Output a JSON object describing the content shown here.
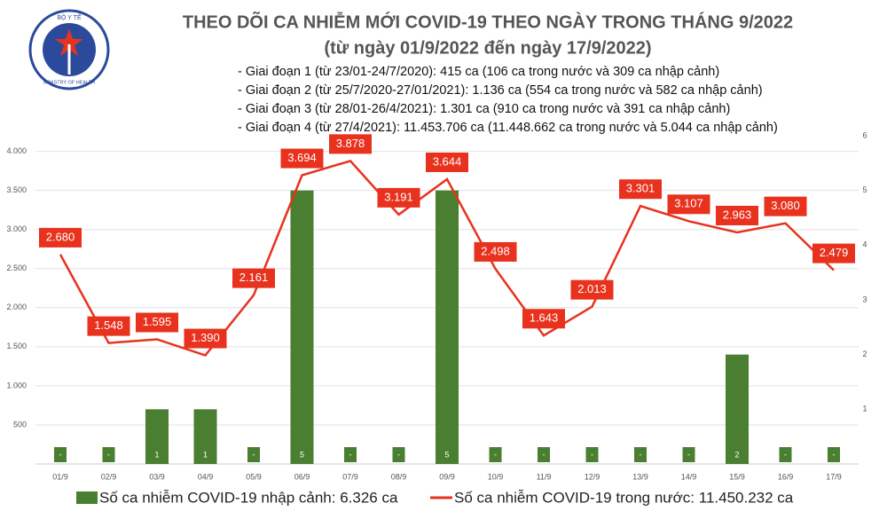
{
  "logo": {
    "top": "BỘ Y TẾ",
    "bottom": "MINISTRY OF HEALTH"
  },
  "header": {
    "title": "THEO DÕI CA NHIỄM MỚI COVID-19 THEO NGÀY TRONG THÁNG 9/2022",
    "subtitle": "(từ ngày 01/9/2022 đến ngày 17/9/2022)",
    "notes": [
      "- Giai đoạn 1 (từ 23/01-24/7/2020): 415 ca (106 ca trong nước và 309 ca nhập cảnh)",
      "- Giai đoạn 2 (từ 25/7/2020-27/01/2021): 1.136 ca (554 ca trong nước và 582 ca nhập cảnh)",
      "- Giai đoạn 3 (từ 28/01-26/4/2021): 1.301 ca (910 ca trong nước và 391 ca nhập cảnh)",
      "- Giai đoạn 4 (từ 27/4/2021): 11.453.706 ca (11.448.662 ca trong nước và 5.044 ca nhập cảnh)"
    ]
  },
  "chart_data": {
    "type": "bar-line",
    "categories": [
      "01/9",
      "02/9",
      "03/9",
      "04/9",
      "05/9",
      "06/9",
      "07/9",
      "08/9",
      "09/9",
      "10/9",
      "11/9",
      "12/9",
      "13/9",
      "14/9",
      "15/9",
      "16/9",
      "17/9"
    ],
    "series": [
      {
        "name": "Số ca nhiễm COVID-19 nhập cảnh: 6.326 ca",
        "type": "bar",
        "axis": "y2",
        "color": "#4a7f32",
        "values": [
          0,
          0,
          1,
          1,
          0,
          5,
          0,
          0,
          5,
          0,
          0,
          0,
          0,
          0,
          2,
          0,
          0
        ],
        "value_labels": [
          "-",
          "-",
          "1",
          "1",
          "-",
          "5",
          "-",
          "-",
          "5",
          "-",
          "-",
          "-",
          "-",
          "-",
          "2",
          "-",
          "-"
        ]
      },
      {
        "name": "Số ca nhiễm COVID-19 trong nước: 11.450.232 ca",
        "type": "line",
        "color": "#e8321e",
        "values": [
          2680,
          1548,
          1595,
          1390,
          2161,
          3694,
          3878,
          3191,
          3644,
          2498,
          1643,
          2013,
          3301,
          3107,
          2963,
          3080,
          2479
        ],
        "value_labels": [
          "2.680",
          "1.548",
          "1.595",
          "1.390",
          "2.161",
          "3.694",
          "3.878",
          "3.191",
          "3.644",
          "2.498",
          "1.643",
          "2.013",
          "3.301",
          "3.107",
          "2.963",
          "3.080",
          "2.479"
        ]
      }
    ],
    "ylim": [
      0,
      4200
    ],
    "yticks": [
      500,
      {
        "value": 1000,
        "label": "1.000"
      },
      {
        "value": 1500,
        "label": "1.500"
      },
      {
        "value": 2000,
        "label": "2.000"
      },
      {
        "value": 2500,
        "label": "2.500"
      },
      {
        "value": 3000,
        "label": "3.000"
      },
      {
        "value": 3500,
        "label": "3.500"
      },
      {
        "value": 4000,
        "label": "4.000"
      }
    ],
    "y2lim": [
      0,
      6
    ],
    "y2ticks": [
      1,
      2,
      3,
      4,
      5,
      6
    ],
    "grid": true
  }
}
